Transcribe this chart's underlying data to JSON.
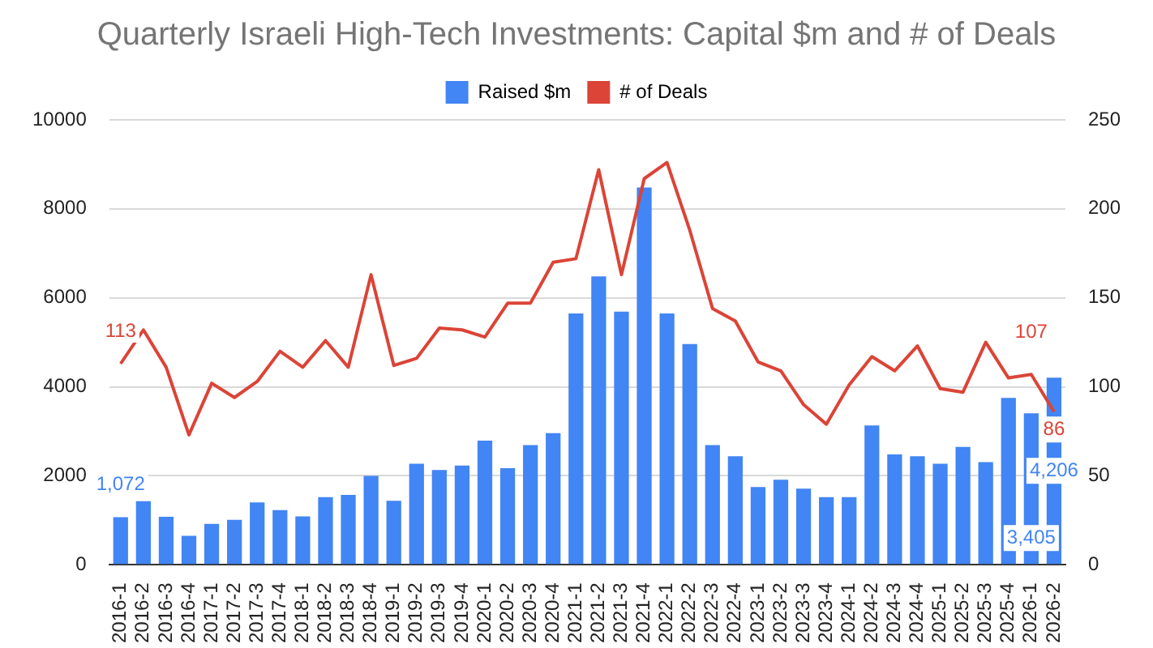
{
  "chart_data": {
    "type": "bar",
    "title": "Quarterly Israeli High-Tech Investments: Capital $m and # of Deals",
    "categories": [
      "2016-1",
      "2016-2",
      "2016-3",
      "2016-4",
      "2017-1",
      "2017-2",
      "2017-3",
      "2017-4",
      "2018-1",
      "2018-2",
      "2018-3",
      "2018-4",
      "2019-1",
      "2019-2",
      "2019-3",
      "2019-4",
      "2020-1",
      "2020-2",
      "2020-3",
      "2020-4",
      "2021-1",
      "2021-2",
      "2021-3",
      "2021-4",
      "2022-1",
      "2022-2",
      "2022-3",
      "2022-4",
      "2023-1",
      "2023-2",
      "2023-3",
      "2023-4",
      "2024-1",
      "2024-2",
      "2024-3",
      "2024-4",
      "2025-1",
      "2025-2",
      "2025-3",
      "2025-4",
      "2026-1",
      "2026-2"
    ],
    "series": [
      {
        "name": "Raised $m",
        "type": "bar",
        "color": "#4285f4",
        "values": [
          1072,
          1430,
          1080,
          650,
          920,
          1010,
          1400,
          1230,
          1090,
          1520,
          1570,
          2000,
          1440,
          2270,
          2130,
          2230,
          2790,
          2170,
          2690,
          2960,
          5650,
          6480,
          5690,
          8480,
          5650,
          4960,
          2690,
          2440,
          1750,
          1910,
          1710,
          1520,
          1520,
          3130,
          2480,
          2440,
          2270,
          2650,
          2310,
          3750,
          3405,
          4206
        ],
        "value_labels": [
          "1,072",
          null,
          null,
          null,
          null,
          null,
          null,
          null,
          null,
          null,
          null,
          null,
          null,
          null,
          null,
          null,
          null,
          null,
          null,
          null,
          null,
          null,
          null,
          null,
          null,
          null,
          null,
          null,
          null,
          null,
          null,
          null,
          null,
          null,
          null,
          null,
          null,
          null,
          null,
          null,
          "3,405",
          "4,206"
        ]
      },
      {
        "name": "# of Deals",
        "type": "line",
        "axis": "y2",
        "color": "#db4437",
        "values": [
          113,
          132,
          111,
          73,
          102,
          94,
          103,
          120,
          111,
          126,
          111,
          163,
          112,
          116,
          133,
          132,
          128,
          147,
          147,
          170,
          172,
          222,
          163,
          217,
          226,
          188,
          144,
          137,
          114,
          109,
          90,
          79,
          101,
          117,
          109,
          123,
          99,
          97,
          125,
          105,
          107,
          86
        ],
        "value_labels": [
          "113",
          null,
          null,
          null,
          null,
          null,
          null,
          null,
          null,
          null,
          null,
          null,
          null,
          null,
          null,
          null,
          null,
          null,
          null,
          null,
          null,
          null,
          null,
          null,
          null,
          null,
          null,
          null,
          null,
          null,
          null,
          null,
          null,
          null,
          null,
          null,
          null,
          null,
          null,
          null,
          "107",
          "86"
        ]
      }
    ],
    "ylim": [
      0,
      10000
    ],
    "yticks": [
      0,
      2000,
      4000,
      6000,
      8000,
      10000
    ],
    "y2lim": [
      0,
      250
    ],
    "y2ticks": [
      0,
      50,
      100,
      150,
      200,
      250
    ],
    "grid": "y",
    "legend": "top",
    "marker": "none",
    "line_style": "solid"
  }
}
